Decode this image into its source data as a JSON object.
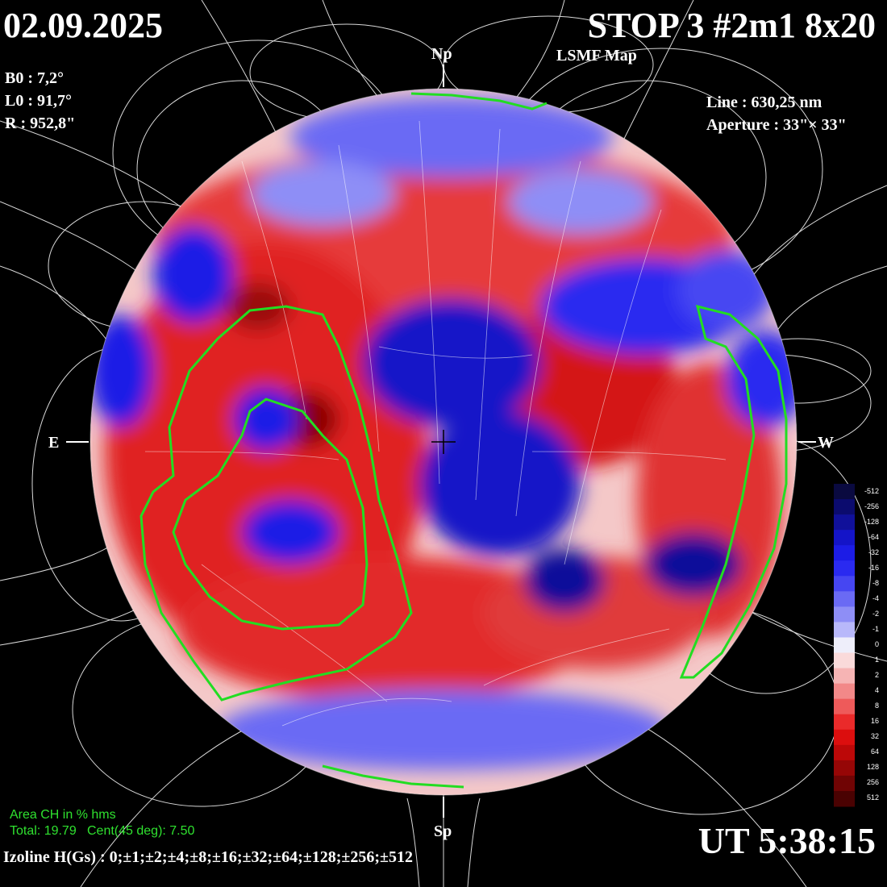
{
  "header": {
    "date": "02.09.2025",
    "title": "STOP 3 #2m1 8x20",
    "subtitle": "LSMF  Map"
  },
  "params": {
    "b0": "B0 : 7,2°",
    "l0": "L0 : 91,7°",
    "r": "R  : 952,8\"",
    "line": "Line :  630,25 nm",
    "aperture": "Aperture : 33\"× 33\""
  },
  "orientation": {
    "north": "Np",
    "south": "Sp",
    "east": "E",
    "west": "W"
  },
  "coronal_hole_area": {
    "heading": "Area CH in % hms",
    "total": "Total: 19.79",
    "central": "Cent(45 deg): 7.50"
  },
  "time": "UT 5:38:15",
  "izoline": "Izoline H(Gs) : 0;±1;±2;±4;±8;±16;±32;±64;±128;±256;±512",
  "color_scale": {
    "labels": [
      "-512",
      "-256",
      "-128",
      "-64",
      "-32",
      "-16",
      "-8",
      "-4",
      "-2",
      "-1",
      "0",
      "1",
      "2",
      "4",
      "8",
      "16",
      "32",
      "64",
      "128",
      "256",
      "512"
    ],
    "colors": [
      "#0a0a40",
      "#0b0b6e",
      "#10109a",
      "#1414c8",
      "#1c1ce6",
      "#2a2af0",
      "#4646f2",
      "#6a6af4",
      "#8e8ef6",
      "#b8b8fa",
      "#eeeefa",
      "#fadada",
      "#f6b4b4",
      "#f28888",
      "#ee5a5a",
      "#ea2a2a",
      "#dc0e0e",
      "#bc0808",
      "#960606",
      "#700404",
      "#4a0202"
    ]
  },
  "colors": {
    "positive": "#e21818",
    "negative": "#1c1ce6",
    "coronal_hole_contour": "#22dd22",
    "field_lines": "#ffffff"
  }
}
